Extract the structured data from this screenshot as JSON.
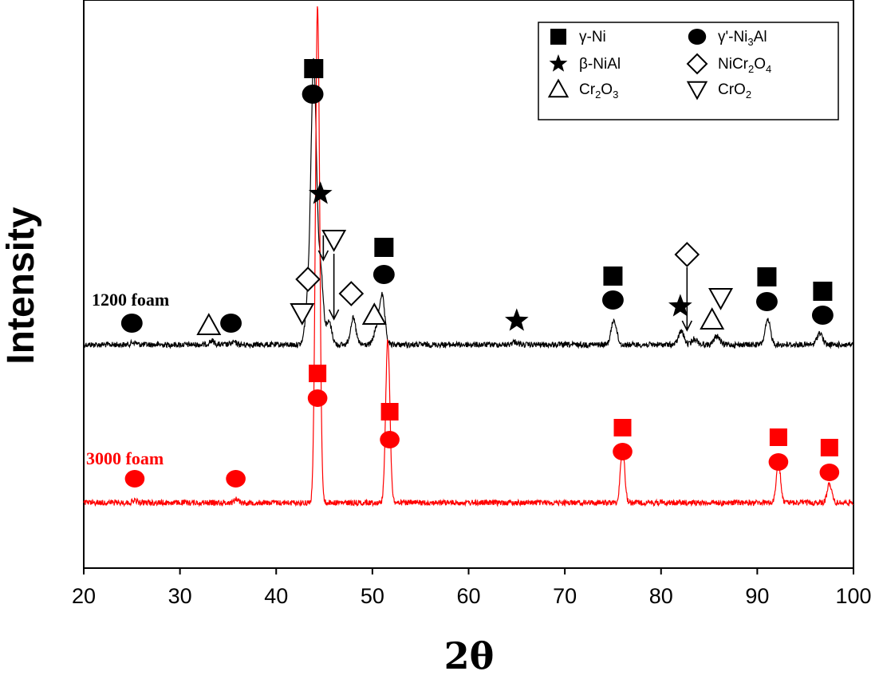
{
  "chart_data": {
    "type": "line",
    "xlabel": "2θ",
    "ylabel": "Intensity",
    "xlim": [
      20,
      100
    ],
    "xticks": [
      20,
      30,
      40,
      50,
      60,
      70,
      80,
      90,
      100
    ],
    "grid": false,
    "legend_position": "top-right",
    "series": [
      {
        "name": "1200 foam",
        "color": "#000000",
        "peaks": [
          {
            "x": 25.2,
            "h": 0.03
          },
          {
            "x": 33.3,
            "h": 0.05
          },
          {
            "x": 35.6,
            "h": 0.03
          },
          {
            "x": 43.3,
            "h": 0.55
          },
          {
            "x": 43.9,
            "h": 3.7
          },
          {
            "x": 44.6,
            "h": 1.0
          },
          {
            "x": 45.5,
            "h": 0.3
          },
          {
            "x": 48.0,
            "h": 0.35
          },
          {
            "x": 51.0,
            "h": 0.65
          },
          {
            "x": 50.4,
            "h": 0.18
          },
          {
            "x": 64.8,
            "h": 0.04
          },
          {
            "x": 75.1,
            "h": 0.33
          },
          {
            "x": 82.1,
            "h": 0.18
          },
          {
            "x": 83.5,
            "h": 0.08
          },
          {
            "x": 85.8,
            "h": 0.12
          },
          {
            "x": 91.1,
            "h": 0.32
          },
          {
            "x": 96.5,
            "h": 0.16
          }
        ]
      },
      {
        "name": "3000 foam",
        "color": "#ff0000",
        "peaks": [
          {
            "x": 25.3,
            "h": 0.03
          },
          {
            "x": 35.9,
            "h": 0.05
          },
          {
            "x": 44.3,
            "h": 6.7
          },
          {
            "x": 51.6,
            "h": 2.2
          },
          {
            "x": 76.0,
            "h": 0.75
          },
          {
            "x": 92.2,
            "h": 0.55
          },
          {
            "x": 97.5,
            "h": 0.27
          }
        ]
      }
    ],
    "legend": [
      {
        "symbol": "square",
        "filled": true,
        "label": "γ-Ni",
        "sub": ""
      },
      {
        "symbol": "circle",
        "filled": true,
        "label": "γ'-Ni",
        "sub": "3",
        "tail": "Al"
      },
      {
        "symbol": "star",
        "filled": true,
        "label": "β-NiAl",
        "sub": ""
      },
      {
        "symbol": "diamond",
        "filled": false,
        "label": "NiCr",
        "sub": "2",
        "tail": "O",
        "sub2": "4"
      },
      {
        "symbol": "triangle",
        "filled": false,
        "label": "Cr",
        "sub": "2",
        "tail": "O",
        "sub2": "3"
      },
      {
        "symbol": "triangle-down",
        "filled": false,
        "label": "CrO",
        "sub": "2"
      }
    ],
    "markers": {
      "1200 foam": [
        {
          "x": 25.0,
          "symbol": "circle"
        },
        {
          "x": 33.0,
          "symbol": "triangle"
        },
        {
          "x": 35.3,
          "symbol": "circle"
        },
        {
          "x": 42.7,
          "symbol": "triangle-down"
        },
        {
          "x": 43.3,
          "symbol": "diamond"
        },
        {
          "x": 43.8,
          "symbol": "circle"
        },
        {
          "x": 43.9,
          "symbol": "square"
        },
        {
          "x": 44.6,
          "symbol": "star"
        },
        {
          "x": 46.0,
          "symbol": "triangle-down"
        },
        {
          "x": 47.8,
          "symbol": "diamond"
        },
        {
          "x": 50.2,
          "symbol": "triangle"
        },
        {
          "x": 51.2,
          "symbol": "circle"
        },
        {
          "x": 51.2,
          "symbol": "square"
        },
        {
          "x": 65.0,
          "symbol": "star"
        },
        {
          "x": 75.0,
          "symbol": "circle"
        },
        {
          "x": 75.0,
          "symbol": "square"
        },
        {
          "x": 82.0,
          "symbol": "star"
        },
        {
          "x": 82.7,
          "symbol": "diamond"
        },
        {
          "x": 85.3,
          "symbol": "triangle"
        },
        {
          "x": 86.2,
          "symbol": "triangle-down"
        },
        {
          "x": 91.0,
          "symbol": "circle"
        },
        {
          "x": 91.0,
          "symbol": "square"
        },
        {
          "x": 96.8,
          "symbol": "circle"
        },
        {
          "x": 96.8,
          "symbol": "square"
        }
      ],
      "3000 foam": [
        {
          "x": 25.3,
          "symbol": "circle"
        },
        {
          "x": 35.8,
          "symbol": "circle"
        },
        {
          "x": 44.3,
          "symbol": "circle"
        },
        {
          "x": 44.3,
          "symbol": "square"
        },
        {
          "x": 51.8,
          "symbol": "circle"
        },
        {
          "x": 51.8,
          "symbol": "square"
        },
        {
          "x": 76.0,
          "symbol": "circle"
        },
        {
          "x": 76.0,
          "symbol": "square"
        },
        {
          "x": 92.2,
          "symbol": "circle"
        },
        {
          "x": 92.2,
          "symbol": "square"
        },
        {
          "x": 97.5,
          "symbol": "circle"
        },
        {
          "x": 97.5,
          "symbol": "square"
        }
      ]
    }
  }
}
